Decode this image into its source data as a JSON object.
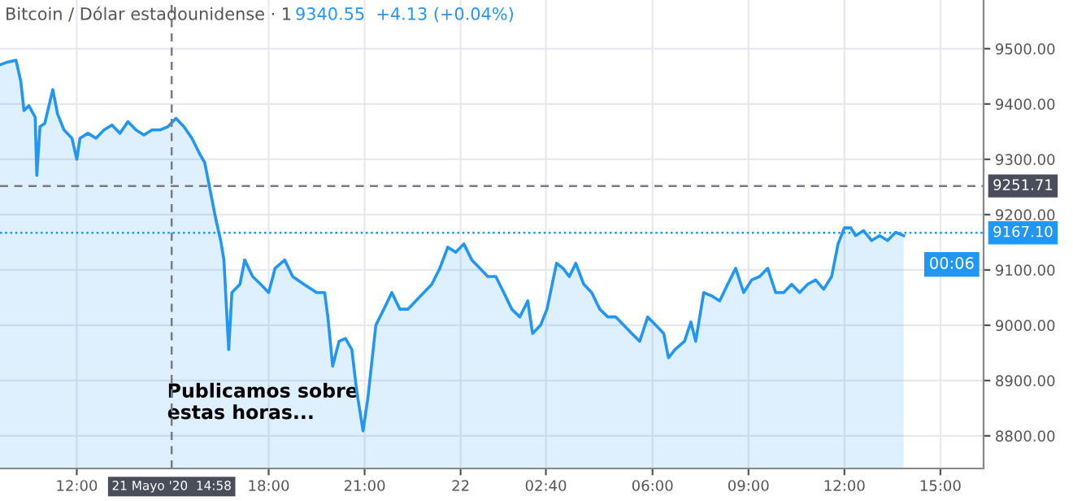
{
  "chart_data": {
    "type": "area",
    "title": "Bitcoin / Dólar estadounidense · 1",
    "subtitle": "9340.55  +4.13 (+0.04%)",
    "x": [
      "2020-05-21T09:36",
      "2020-05-21T09:51",
      "2020-05-21T10:06",
      "2020-05-21T10:15",
      "2020-05-21T10:21",
      "2020-05-21T10:30",
      "2020-05-21T10:42",
      "2020-05-21T10:45",
      "2020-05-21T10:51",
      "2020-05-21T11:00",
      "2020-05-21T11:15",
      "2020-05-21T11:24",
      "2020-05-21T11:36",
      "2020-05-21T11:51",
      "2020-05-21T12:00",
      "2020-05-21T12:06",
      "2020-05-21T12:21",
      "2020-05-21T12:36",
      "2020-05-21T12:51",
      "2020-05-21T13:06",
      "2020-05-21T13:21",
      "2020-05-21T13:36",
      "2020-05-21T13:51",
      "2020-05-21T14:06",
      "2020-05-21T14:21",
      "2020-05-21T14:36",
      "2020-05-21T14:51",
      "2020-05-21T15:06",
      "2020-05-21T15:21",
      "2020-05-21T15:36",
      "2020-05-21T15:51",
      "2020-05-21T16:00",
      "2020-05-21T16:12",
      "2020-05-21T16:21",
      "2020-05-21T16:30",
      "2020-05-21T16:36",
      "2020-05-21T16:45",
      "2020-05-21T16:51",
      "2020-05-21T17:06",
      "2020-05-21T17:15",
      "2020-05-21T17:30",
      "2020-05-21T17:45",
      "2020-05-21T18:00",
      "2020-05-21T18:12",
      "2020-05-21T18:30",
      "2020-05-21T18:45",
      "2020-05-21T19:06",
      "2020-05-21T19:30",
      "2020-05-21T19:45",
      "2020-05-21T19:51",
      "2020-05-21T20:00",
      "2020-05-21T20:12",
      "2020-05-21T20:24",
      "2020-05-21T20:36",
      "2020-05-21T20:45",
      "2020-05-21T20:57",
      "2020-05-21T21:06",
      "2020-05-21T21:21",
      "2020-05-21T21:36",
      "2020-05-21T21:51",
      "2020-05-21T22:06",
      "2020-05-21T22:21",
      "2020-05-21T22:36",
      "2020-05-21T22:51",
      "2020-05-21T23:06",
      "2020-05-21T23:21",
      "2020-05-21T23:36",
      "2020-05-21T23:51",
      "2020-05-22T00:06",
      "2020-05-22T00:21",
      "2020-05-22T00:36",
      "2020-05-22T00:51",
      "2020-05-22T01:06",
      "2020-05-22T01:21",
      "2020-05-22T01:36",
      "2020-05-22T01:51",
      "2020-05-22T02:06",
      "2020-05-22T02:15",
      "2020-05-22T02:30",
      "2020-05-22T02:42",
      "2020-05-22T03:00",
      "2020-05-22T03:12",
      "2020-05-22T03:24",
      "2020-05-22T03:36",
      "2020-05-22T03:51",
      "2020-05-22T04:06",
      "2020-05-22T04:21",
      "2020-05-22T04:36",
      "2020-05-22T04:51",
      "2020-05-22T05:06",
      "2020-05-22T05:21",
      "2020-05-22T05:36",
      "2020-05-22T05:51",
      "2020-05-22T06:06",
      "2020-05-22T06:21",
      "2020-05-22T06:30",
      "2020-05-22T06:42",
      "2020-05-22T07:00",
      "2020-05-22T07:12",
      "2020-05-22T07:21",
      "2020-05-22T07:36",
      "2020-05-22T07:51",
      "2020-05-22T08:06",
      "2020-05-22T08:21",
      "2020-05-22T08:36",
      "2020-05-22T08:51",
      "2020-05-22T09:06",
      "2020-05-22T09:21",
      "2020-05-22T09:36",
      "2020-05-22T09:51",
      "2020-05-22T10:06",
      "2020-05-22T10:21",
      "2020-05-22T10:36",
      "2020-05-22T10:51",
      "2020-05-22T11:06",
      "2020-05-22T11:21",
      "2020-05-22T11:36",
      "2020-05-22T11:48",
      "2020-05-22T12:00",
      "2020-05-22T12:12",
      "2020-05-22T12:21",
      "2020-05-22T12:36",
      "2020-05-22T12:51",
      "2020-05-22T13:06",
      "2020-05-22T13:21",
      "2020-05-22T13:36",
      "2020-05-22T13:51"
    ],
    "values": [
      9471,
      9476,
      9479,
      9441,
      9388,
      9397,
      9376,
      9271,
      9359,
      9365,
      9426,
      9382,
      9353,
      9338,
      9300,
      9338,
      9347,
      9338,
      9353,
      9362,
      9347,
      9368,
      9353,
      9344,
      9353,
      9353,
      9359,
      9374,
      9359,
      9338,
      9309,
      9294,
      9235,
      9191,
      9153,
      9118,
      8956,
      9059,
      9074,
      9118,
      9088,
      9074,
      9059,
      9103,
      9118,
      9088,
      9074,
      9059,
      9059,
      9015,
      8926,
      8971,
      8976,
      8956,
      8882,
      8809,
      8868,
      9000,
      9029,
      9059,
      9029,
      9029,
      9044,
      9059,
      9074,
      9103,
      9141,
      9132,
      9147,
      9118,
      9103,
      9088,
      9088,
      9059,
      9029,
      9015,
      9044,
      8985,
      9000,
      9029,
      9112,
      9103,
      9088,
      9112,
      9074,
      9059,
      9029,
      9015,
      9015,
      9000,
      8985,
      8971,
      9015,
      9000,
      8985,
      8941,
      8956,
      8971,
      9006,
      8971,
      9059,
      9053,
      9044,
      9074,
      9103,
      9059,
      9082,
      9088,
      9103,
      9059,
      9059,
      9074,
      9059,
      9074,
      9082,
      9065,
      9088,
      9147,
      9176,
      9176,
      9162,
      9171,
      9153,
      9162,
      9153,
      9168,
      9162
    ],
    "color": "#2196f3",
    "xlim": [
      "2020-05-21T09:36",
      "2020-05-22T16:21"
    ],
    "xticks": [
      {
        "value": "2020-05-21T12:00",
        "label": "12:00"
      },
      {
        "value": "2020-05-21T18:00",
        "label": "18:00"
      },
      {
        "value": "2020-05-21T21:00",
        "label": "21:00"
      },
      {
        "value": "2020-05-22T00:00",
        "label": "22"
      },
      {
        "value": "2020-05-22T02:40",
        "label": "02:40"
      },
      {
        "value": "2020-05-22T06:00",
        "label": "06:00"
      },
      {
        "value": "2020-05-22T09:00",
        "label": "09:00"
      },
      {
        "value": "2020-05-22T12:00",
        "label": "12:00"
      },
      {
        "value": "2020-05-22T15:00",
        "label": "15:00"
      }
    ],
    "ylim": [
      8741,
      9588
    ],
    "yticks": [
      {
        "value": 8800,
        "label": "8800.00"
      },
      {
        "value": 8900,
        "label": "8900.00"
      },
      {
        "value": 9000,
        "label": "9000.00"
      },
      {
        "value": 9100,
        "label": "9100.00"
      },
      {
        "value": 9200,
        "label": "9200.00"
      },
      {
        "value": 9300,
        "label": "9300.00"
      },
      {
        "value": 9400,
        "label": "9400.00"
      },
      {
        "value": 9500,
        "label": "9500.00"
      }
    ],
    "grid": true,
    "ref_lines": [
      {
        "axis": "x",
        "value": "2020-05-21T14:58",
        "label": "21 Mayo '20  14:58",
        "color": "#787b86",
        "line_style": "dashed"
      },
      {
        "axis": "y",
        "value": 9251.71,
        "label": "9251.71",
        "color": "#787b86",
        "line_style": "dashed"
      },
      {
        "axis": "y",
        "value": 9167.1,
        "label": "9167.10",
        "color": "#2196f3",
        "line_style": "dotted"
      }
    ],
    "annotations": [
      "Publicamos sobre\nestas horas...",
      "00:06"
    ]
  }
}
